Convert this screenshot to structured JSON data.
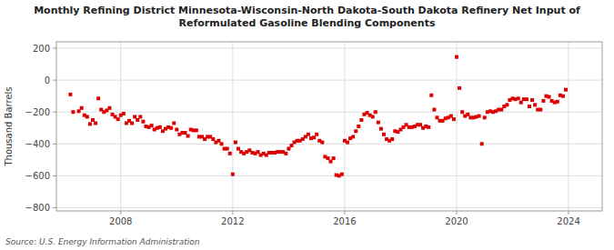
{
  "chart_data": {
    "type": "scatter",
    "title": "Monthly Refining District Minnesota-Wisconsin-North Dakota-South Dakota Refinery Net Input of\nReformulated Gasoline Blending Components",
    "y_label": "Thousand Barrels",
    "annotations": [
      "Source: U.S. Energy Information Administration"
    ],
    "color": "#dd0000",
    "marker": "square",
    "grid": true,
    "xlim": [
      2005.7,
      2025.2
    ],
    "ylim": [
      -820,
      240
    ],
    "xticks": [
      2008,
      2012,
      2016,
      2020,
      2024
    ],
    "yticks": [
      {
        "value": -800,
        "label": "−800"
      },
      {
        "value": -600,
        "label": "−600"
      },
      {
        "value": -400,
        "label": "−400"
      },
      {
        "value": -200,
        "label": "−200"
      },
      0,
      200
    ],
    "x": [
      2006.2,
      2006.3,
      2006.5,
      2006.6,
      2006.7,
      2006.8,
      2006.9,
      2007.0,
      2007.1,
      2007.2,
      2007.3,
      2007.4,
      2007.5,
      2007.6,
      2007.7,
      2007.8,
      2007.9,
      2008.0,
      2008.1,
      2008.2,
      2008.3,
      2008.4,
      2008.5,
      2008.6,
      2008.7,
      2008.8,
      2008.9,
      2009.0,
      2009.1,
      2009.2,
      2009.3,
      2009.4,
      2009.5,
      2009.6,
      2009.7,
      2009.8,
      2009.9,
      2010.0,
      2010.1,
      2010.2,
      2010.3,
      2010.4,
      2010.5,
      2010.6,
      2010.7,
      2010.8,
      2010.9,
      2011.0,
      2011.1,
      2011.2,
      2011.3,
      2011.4,
      2011.5,
      2011.6,
      2011.7,
      2011.8,
      2011.9,
      2012.0,
      2012.1,
      2012.2,
      2012.3,
      2012.4,
      2012.5,
      2012.6,
      2012.7,
      2012.8,
      2012.9,
      2013.0,
      2013.1,
      2013.2,
      2013.3,
      2013.4,
      2013.5,
      2013.6,
      2013.7,
      2013.8,
      2013.9,
      2014.0,
      2014.1,
      2014.2,
      2014.3,
      2014.4,
      2014.5,
      2014.6,
      2014.7,
      2014.8,
      2014.9,
      2015.0,
      2015.1,
      2015.2,
      2015.3,
      2015.4,
      2015.5,
      2015.6,
      2015.7,
      2015.8,
      2015.9,
      2016.0,
      2016.1,
      2016.2,
      2016.3,
      2016.4,
      2016.5,
      2016.6,
      2016.7,
      2016.8,
      2016.9,
      2017.0,
      2017.1,
      2017.2,
      2017.3,
      2017.4,
      2017.5,
      2017.6,
      2017.7,
      2017.8,
      2017.9,
      2018.0,
      2018.1,
      2018.2,
      2018.3,
      2018.4,
      2018.5,
      2018.6,
      2018.7,
      2018.8,
      2018.9,
      2019.0,
      2019.1,
      2019.2,
      2019.3,
      2019.4,
      2019.5,
      2019.6,
      2019.7,
      2019.8,
      2019.9,
      2020.0,
      2020.1,
      2020.2,
      2020.3,
      2020.4,
      2020.5,
      2020.6,
      2020.7,
      2020.8,
      2020.9,
      2021.0,
      2021.1,
      2021.2,
      2021.3,
      2021.4,
      2021.5,
      2021.6,
      2021.7,
      2021.8,
      2021.9,
      2022.0,
      2022.1,
      2022.2,
      2022.3,
      2022.4,
      2022.5,
      2022.6,
      2022.7,
      2022.8,
      2022.9,
      2023.0,
      2023.1,
      2023.2,
      2023.3,
      2023.4,
      2023.5,
      2023.6,
      2023.7,
      2023.8,
      2023.9
    ],
    "values": [
      -90,
      -200,
      -195,
      -175,
      -220,
      -230,
      -275,
      -250,
      -270,
      -115,
      -185,
      -200,
      -190,
      -175,
      -215,
      -230,
      -245,
      -220,
      -210,
      -270,
      -255,
      -270,
      -230,
      -250,
      -230,
      -260,
      -290,
      -295,
      -285,
      -310,
      -300,
      -295,
      -320,
      -305,
      -295,
      -300,
      -270,
      -310,
      -340,
      -330,
      -330,
      -350,
      -310,
      -315,
      -315,
      -355,
      -355,
      -370,
      -355,
      -355,
      -370,
      -390,
      -380,
      -400,
      -430,
      -430,
      -460,
      -590,
      -390,
      -430,
      -450,
      -460,
      -450,
      -440,
      -455,
      -460,
      -450,
      -470,
      -460,
      -470,
      -455,
      -455,
      -455,
      -450,
      -450,
      -450,
      -460,
      -430,
      -410,
      -390,
      -380,
      -380,
      -370,
      -355,
      -340,
      -365,
      -360,
      -340,
      -380,
      -390,
      -480,
      -490,
      -510,
      -490,
      -595,
      -600,
      -590,
      -380,
      -390,
      -365,
      -355,
      -320,
      -290,
      -250,
      -215,
      -205,
      -220,
      -230,
      -200,
      -265,
      -305,
      -340,
      -370,
      -380,
      -370,
      -320,
      -325,
      -310,
      -295,
      -280,
      -295,
      -295,
      -290,
      -280,
      -280,
      -300,
      -290,
      -295,
      -95,
      -185,
      -235,
      -255,
      -255,
      -240,
      -235,
      -225,
      -245,
      145,
      -50,
      -200,
      -225,
      -215,
      -235,
      -235,
      -230,
      -225,
      -400,
      -235,
      -200,
      -195,
      -200,
      -195,
      -185,
      -185,
      -165,
      -155,
      -125,
      -115,
      -120,
      -115,
      -140,
      -120,
      -120,
      -165,
      -125,
      -155,
      -185,
      -185,
      -130,
      -100,
      -105,
      -130,
      -140,
      -135,
      -95,
      -100,
      -60
    ]
  }
}
